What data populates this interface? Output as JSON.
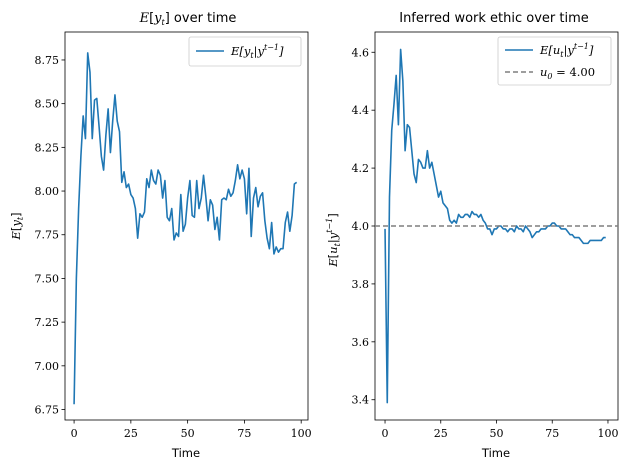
{
  "chart_data": [
    {
      "type": "line",
      "title": "E[y_t] over time",
      "xlabel": "Time",
      "ylabel": "E[y_t]",
      "xlim": [
        -4,
        103
      ],
      "ylim": [
        6.69,
        8.91
      ],
      "xticks": [
        0,
        25,
        50,
        75,
        100
      ],
      "yticks": [
        6.75,
        7.0,
        7.25,
        7.5,
        7.75,
        8.0,
        8.25,
        8.5,
        8.75
      ],
      "ytick_labels": [
        "6.75",
        "7.00",
        "7.25",
        "7.50",
        "7.75",
        "8.00",
        "8.25",
        "8.50",
        "8.75"
      ],
      "legend_position": "top-right",
      "grid": false,
      "series": [
        {
          "name": "E[y_t|y^{t-1}]",
          "color": "#1f77b4",
          "x": [
            0,
            1,
            2,
            3,
            4,
            5,
            6,
            7,
            8,
            9,
            10,
            11,
            12,
            13,
            14,
            15,
            16,
            17,
            18,
            19,
            20,
            21,
            22,
            23,
            24,
            25,
            26,
            27,
            28,
            29,
            30,
            31,
            32,
            33,
            34,
            35,
            36,
            37,
            38,
            39,
            40,
            41,
            42,
            43,
            44,
            45,
            46,
            47,
            48,
            49,
            50,
            51,
            52,
            53,
            54,
            55,
            56,
            57,
            58,
            59,
            60,
            61,
            62,
            63,
            64,
            65,
            66,
            67,
            68,
            69,
            70,
            71,
            72,
            73,
            74,
            75,
            76,
            77,
            78,
            79,
            80,
            81,
            82,
            83,
            84,
            85,
            86,
            87,
            88,
            89,
            90,
            91,
            92,
            93,
            94,
            95,
            96,
            97,
            98
          ],
          "values": [
            6.78,
            7.5,
            7.9,
            8.2,
            8.43,
            8.3,
            8.79,
            8.68,
            8.3,
            8.52,
            8.53,
            8.37,
            8.2,
            8.12,
            8.32,
            8.47,
            8.22,
            8.4,
            8.55,
            8.4,
            8.34,
            8.05,
            8.11,
            8.02,
            8.04,
            7.98,
            7.96,
            7.9,
            7.73,
            7.87,
            7.85,
            7.88,
            8.07,
            8.02,
            8.12,
            8.06,
            8.04,
            8.12,
            8.09,
            7.96,
            8.06,
            7.85,
            7.83,
            7.9,
            7.72,
            7.76,
            7.74,
            7.98,
            7.77,
            7.81,
            7.96,
            8.06,
            7.86,
            7.85,
            8.06,
            7.9,
            7.96,
            8.09,
            7.97,
            7.83,
            7.95,
            7.92,
            7.78,
            7.85,
            7.72,
            7.95,
            7.96,
            7.95,
            8.01,
            7.97,
            7.99,
            8.06,
            8.15,
            8.07,
            8.12,
            8.07,
            7.87,
            8.13,
            7.74,
            7.96,
            8.02,
            7.91,
            7.97,
            7.99,
            7.83,
            7.73,
            7.67,
            7.82,
            7.64,
            7.68,
            7.65,
            7.67,
            7.67,
            7.82,
            7.88,
            7.77,
            7.86,
            8.04,
            8.05
          ]
        }
      ]
    },
    {
      "type": "line",
      "title": "Inferred work ethic over time",
      "xlabel": "Time",
      "ylabel": "E[u_t|y^{t-1}]",
      "xlim": [
        -4.5,
        104.5
      ],
      "ylim": [
        3.33,
        4.67
      ],
      "xticks": [
        0,
        25,
        50,
        75,
        100
      ],
      "yticks": [
        3.4,
        3.6,
        3.8,
        4.0,
        4.2,
        4.4,
        4.6
      ],
      "ytick_labels": [
        "3.4",
        "3.6",
        "3.8",
        "4.0",
        "4.2",
        "4.4",
        "4.6"
      ],
      "legend_position": "top-right",
      "grid": false,
      "series": [
        {
          "name": "E[u_t|y^{t-1}]",
          "color": "#1f77b4",
          "x": [
            0,
            1,
            2,
            3,
            4,
            5,
            6,
            7,
            8,
            9,
            10,
            11,
            12,
            13,
            14,
            15,
            16,
            17,
            18,
            19,
            20,
            21,
            22,
            23,
            24,
            25,
            26,
            27,
            28,
            29,
            30,
            31,
            32,
            33,
            34,
            35,
            36,
            37,
            38,
            39,
            40,
            41,
            42,
            43,
            44,
            45,
            46,
            47,
            48,
            49,
            50,
            51,
            52,
            53,
            54,
            55,
            56,
            57,
            58,
            59,
            60,
            61,
            62,
            63,
            64,
            65,
            66,
            67,
            68,
            69,
            70,
            71,
            72,
            73,
            74,
            75,
            76,
            77,
            78,
            79,
            80,
            81,
            82,
            83,
            84,
            85,
            86,
            87,
            88,
            89,
            90,
            91,
            92,
            93,
            94,
            95,
            96,
            97,
            98,
            99
          ],
          "values": [
            3.99,
            3.39,
            4.1,
            4.33,
            4.42,
            4.52,
            4.35,
            4.61,
            4.5,
            4.26,
            4.35,
            4.34,
            4.26,
            4.18,
            4.15,
            4.23,
            4.22,
            4.2,
            4.2,
            4.26,
            4.2,
            4.22,
            4.18,
            4.14,
            4.1,
            4.12,
            4.08,
            4.07,
            4.06,
            4.02,
            4.01,
            4.02,
            4.01,
            4.04,
            4.03,
            4.03,
            4.04,
            4.04,
            4.03,
            4.05,
            4.04,
            4.04,
            4.03,
            4.04,
            4.02,
            4.01,
            3.99,
            3.99,
            3.97,
            3.99,
            3.99,
            4.0,
            4.0,
            3.99,
            3.99,
            3.98,
            3.99,
            3.99,
            3.98,
            4.0,
            3.99,
            3.99,
            3.98,
            4.0,
            3.99,
            3.98,
            3.96,
            3.97,
            3.98,
            3.98,
            3.99,
            3.99,
            3.99,
            4.0,
            4.0,
            4.01,
            4.01,
            4.0,
            4.0,
            3.99,
            3.99,
            3.99,
            3.98,
            3.97,
            3.97,
            3.96,
            3.96,
            3.96,
            3.95,
            3.94,
            3.94,
            3.94,
            3.95,
            3.95,
            3.95,
            3.95,
            3.95,
            3.95,
            3.96,
            3.96
          ]
        },
        {
          "name": "u_0 = 4.00",
          "color": "#7f7f7f",
          "style": "dashed",
          "x": [
            -4.5,
            104.5
          ],
          "values": [
            4.0,
            4.0
          ]
        }
      ]
    }
  ]
}
